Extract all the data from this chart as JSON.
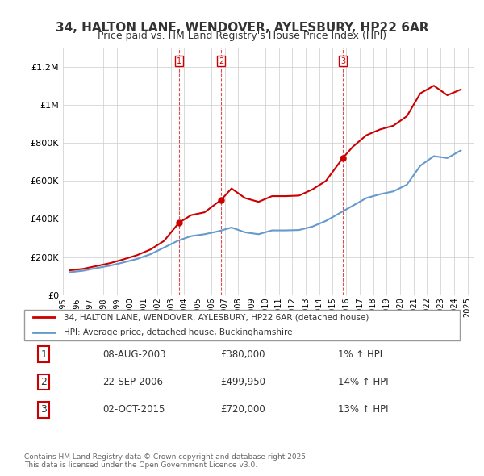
{
  "title": "34, HALTON LANE, WENDOVER, AYLESBURY, HP22 6AR",
  "subtitle": "Price paid vs. HM Land Registry's House Price Index (HPI)",
  "legend_line1": "34, HALTON LANE, WENDOVER, AYLESBURY, HP22 6AR (detached house)",
  "legend_line2": "HPI: Average price, detached house, Buckinghamshire",
  "footer": "Contains HM Land Registry data © Crown copyright and database right 2025.\nThis data is licensed under the Open Government Licence v3.0.",
  "sales": [
    {
      "label": "1",
      "date": "08-AUG-2003",
      "price": 380000,
      "year": 2003.6,
      "hpi_pct": "1%"
    },
    {
      "label": "2",
      "date": "22-SEP-2006",
      "price": 499950,
      "year": 2006.72,
      "hpi_pct": "14%"
    },
    {
      "label": "3",
      "date": "02-OCT-2015",
      "price": 720000,
      "year": 2015.75,
      "hpi_pct": "13%"
    }
  ],
  "red_color": "#cc0000",
  "blue_color": "#6699cc",
  "dashed_color": "#cc0000",
  "ylim": [
    0,
    1300000
  ],
  "xlim_start": 1995,
  "xlim_end": 2025.5,
  "hpi_data": {
    "years": [
      1995.5,
      1996.5,
      1997.5,
      1998.5,
      1999.5,
      2000.5,
      2001.5,
      2002.5,
      2003.5,
      2004.5,
      2005.5,
      2006.5,
      2007.5,
      2008.5,
      2009.5,
      2010.5,
      2011.5,
      2012.5,
      2013.5,
      2014.5,
      2015.5,
      2016.5,
      2017.5,
      2018.5,
      2019.5,
      2020.5,
      2021.5,
      2022.5,
      2023.5,
      2024.5
    ],
    "values": [
      120000,
      128000,
      142000,
      155000,
      172000,
      190000,
      215000,
      250000,
      285000,
      310000,
      320000,
      335000,
      355000,
      330000,
      320000,
      340000,
      340000,
      342000,
      360000,
      390000,
      430000,
      470000,
      510000,
      530000,
      545000,
      580000,
      680000,
      730000,
      720000,
      760000
    ]
  },
  "price_data": {
    "years": [
      1995.5,
      1996.5,
      1997.5,
      1998.5,
      1999.5,
      2000.5,
      2001.5,
      2002.5,
      2003.6,
      2004.5,
      2005.5,
      2006.72,
      2007.5,
      2008.5,
      2009.5,
      2010.5,
      2011.5,
      2012.5,
      2013.5,
      2014.5,
      2015.75,
      2016.5,
      2017.5,
      2018.5,
      2019.5,
      2020.5,
      2021.5,
      2022.5,
      2023.5,
      2024.5
    ],
    "values": [
      130000,
      138000,
      153000,
      168000,
      188000,
      210000,
      240000,
      285000,
      380000,
      420000,
      435000,
      499950,
      560000,
      510000,
      490000,
      520000,
      520000,
      523000,
      555000,
      600000,
      720000,
      780000,
      840000,
      870000,
      890000,
      940000,
      1060000,
      1100000,
      1050000,
      1080000
    ]
  }
}
